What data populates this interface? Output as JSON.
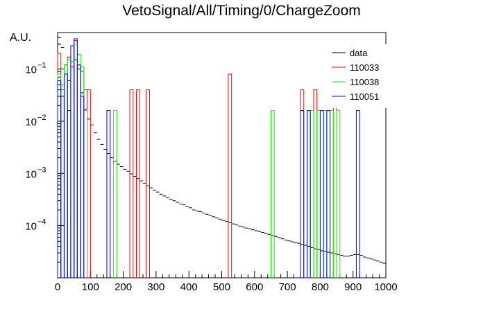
{
  "chart_data": {
    "type": "step-histogram",
    "title": "VetoSignal/All/Timing/0/ChargeZoom",
    "xlabel": "",
    "ylabel": "A.U.",
    "xlim": [
      0,
      1000
    ],
    "ylim": [
      1e-05,
      0.5
    ],
    "yscale": "log",
    "xticks": [
      "0",
      "100",
      "200",
      "300",
      "400",
      "500",
      "600",
      "700",
      "800",
      "900",
      "1000"
    ],
    "yticks": [
      {
        "value": 0.0001,
        "base": "10",
        "exp": "−4"
      },
      {
        "value": 0.001,
        "base": "10",
        "exp": "−3"
      },
      {
        "value": 0.01,
        "base": "10",
        "exp": "−2"
      },
      {
        "value": 0.1,
        "base": "10",
        "exp": "−1"
      }
    ],
    "grid": false,
    "legend_position": "top-right",
    "bin_width": 10,
    "series": [
      {
        "name": "data",
        "color": "#000000",
        "style": "errorbar",
        "points": [
          [
            5,
            0.3
          ],
          [
            15,
            0.26
          ],
          [
            25,
            0.12
          ],
          [
            35,
            0.06
          ],
          [
            45,
            0.11
          ],
          [
            55,
            0.15
          ],
          [
            65,
            0.1
          ],
          [
            75,
            0.035
          ],
          [
            85,
            0.017
          ],
          [
            95,
            0.011
          ],
          [
            105,
            0.0085
          ],
          [
            115,
            0.006
          ],
          [
            125,
            0.0045
          ],
          [
            135,
            0.0036
          ],
          [
            145,
            0.0029
          ],
          [
            155,
            0.0024
          ],
          [
            165,
            0.002
          ],
          [
            175,
            0.0017
          ],
          [
            185,
            0.0015
          ],
          [
            195,
            0.00135
          ],
          [
            205,
            0.0012
          ],
          [
            215,
            0.0011
          ],
          [
            225,
            0.00098
          ],
          [
            235,
            0.00088
          ],
          [
            245,
            0.0008
          ],
          [
            255,
            0.00072
          ],
          [
            265,
            0.00065
          ],
          [
            275,
            0.00058
          ],
          [
            285,
            0.00053
          ],
          [
            295,
            0.00048
          ],
          [
            305,
            0.00044
          ],
          [
            315,
            0.0004
          ],
          [
            325,
            0.00037
          ],
          [
            335,
            0.00034
          ],
          [
            345,
            0.00032
          ],
          [
            355,
            0.0003
          ],
          [
            365,
            0.00028
          ],
          [
            375,
            0.00026
          ],
          [
            385,
            0.00025
          ],
          [
            395,
            0.00023
          ],
          [
            405,
            0.00022
          ],
          [
            415,
            0.0002
          ],
          [
            425,
            0.00019
          ],
          [
            435,
            0.000185
          ],
          [
            445,
            0.000175
          ],
          [
            455,
            0.000165
          ],
          [
            465,
            0.000155
          ],
          [
            475,
            0.000148
          ],
          [
            485,
            0.00014
          ],
          [
            495,
            0.000133
          ],
          [
            505,
            0.000126
          ],
          [
            515,
            0.00012
          ],
          [
            525,
            0.000114
          ],
          [
            535,
            0.000108
          ],
          [
            545,
            0.000103
          ],
          [
            555,
            9.8e-05
          ],
          [
            565,
            9.4e-05
          ],
          [
            575,
            9e-05
          ],
          [
            585,
            8.7e-05
          ],
          [
            595,
            8.3e-05
          ],
          [
            605,
            8e-05
          ],
          [
            615,
            7.7e-05
          ],
          [
            625,
            7.4e-05
          ],
          [
            635,
            7.1e-05
          ],
          [
            645,
            6.8e-05
          ],
          [
            655,
            6.5e-05
          ],
          [
            665,
            6.2e-05
          ],
          [
            675,
            5.9e-05
          ],
          [
            685,
            5.6e-05
          ],
          [
            695,
            5.3e-05
          ],
          [
            705,
            5.1e-05
          ],
          [
            715,
            4.9e-05
          ],
          [
            725,
            4.7e-05
          ],
          [
            735,
            4.6e-05
          ],
          [
            745,
            4.4e-05
          ],
          [
            755,
            4.2e-05
          ],
          [
            765,
            4e-05
          ],
          [
            775,
            3.8e-05
          ],
          [
            785,
            3.6e-05
          ],
          [
            795,
            3.5e-05
          ],
          [
            805,
            3.3e-05
          ],
          [
            815,
            3.2e-05
          ],
          [
            825,
            3.1e-05
          ],
          [
            835,
            3e-05
          ],
          [
            845,
            2.9e-05
          ],
          [
            855,
            2.8e-05
          ],
          [
            865,
            2.7e-05
          ],
          [
            875,
            2.6e-05
          ],
          [
            885,
            2.6e-05
          ],
          [
            895,
            2.7e-05
          ],
          [
            905,
            2.8e-05
          ],
          [
            915,
            2.8e-05
          ],
          [
            925,
            2.7e-05
          ],
          [
            935,
            2.5e-05
          ],
          [
            945,
            2.4e-05
          ],
          [
            955,
            2.3e-05
          ],
          [
            965,
            2.2e-05
          ],
          [
            975,
            2.1e-05
          ],
          [
            985,
            2e-05
          ],
          [
            995,
            1.9e-05
          ]
        ]
      },
      {
        "name": "110033",
        "color": "#ff0000",
        "style": "step",
        "bins": [
          [
            0,
            0.2
          ],
          [
            10,
            0.04
          ],
          [
            20,
            0.12
          ],
          [
            30,
            0.17
          ],
          [
            40,
            0.11
          ],
          [
            50,
            0.35
          ],
          [
            60,
            0.12
          ],
          [
            70,
            0.09
          ],
          [
            80,
            0.04
          ],
          [
            90,
            0.04
          ],
          [
            220,
            0.04
          ],
          [
            240,
            0.04
          ],
          [
            270,
            0.04
          ],
          [
            520,
            0.08
          ],
          [
            740,
            0.04
          ],
          [
            780,
            0.04
          ],
          [
            840,
            0.04
          ]
        ]
      },
      {
        "name": "110038",
        "color": "#00ff00",
        "style": "step",
        "bins": [
          [
            0,
            0.08
          ],
          [
            10,
            0.05
          ],
          [
            20,
            0.12
          ],
          [
            30,
            0.15
          ],
          [
            40,
            0.14
          ],
          [
            50,
            0.3
          ],
          [
            60,
            0.19
          ],
          [
            70,
            0.11
          ],
          [
            80,
            0.016
          ],
          [
            170,
            0.016
          ],
          [
            650,
            0.016
          ],
          [
            740,
            0.016
          ],
          [
            770,
            0.016
          ],
          [
            790,
            0.016
          ],
          [
            810,
            0.016
          ],
          [
            830,
            0.016
          ],
          [
            850,
            0.016
          ]
        ]
      },
      {
        "name": "110051",
        "color": "#0000ff",
        "style": "step",
        "bins": [
          [
            0,
            0.06
          ],
          [
            10,
            0.03
          ],
          [
            20,
            0.08
          ],
          [
            30,
            0.016
          ],
          [
            40,
            0.28
          ],
          [
            50,
            0.38
          ],
          [
            60,
            0.12
          ],
          [
            70,
            0.03
          ],
          [
            150,
            0.016
          ],
          [
            740,
            0.016
          ],
          [
            760,
            0.016
          ],
          [
            800,
            0.016
          ],
          [
            820,
            0.016
          ],
          [
            910,
            0.016
          ]
        ]
      }
    ]
  }
}
